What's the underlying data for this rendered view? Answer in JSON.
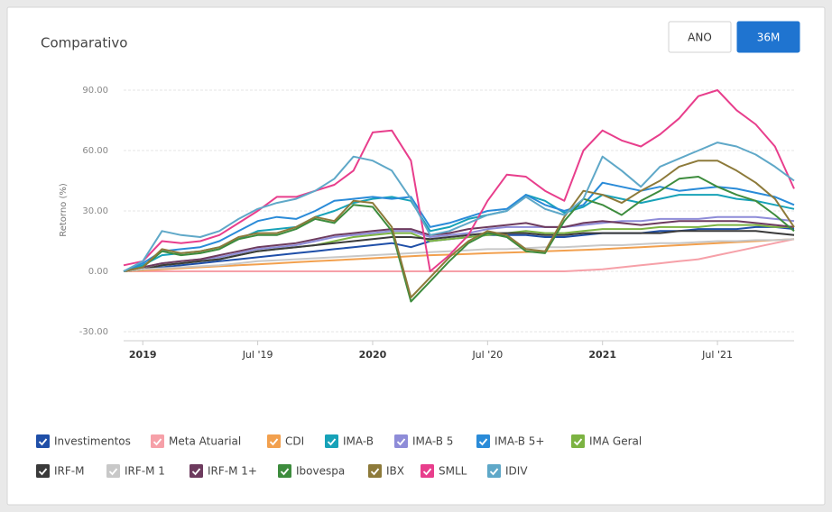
{
  "chart_data": {
    "type": "line",
    "title": "Comparativo",
    "y_label": "Retorno (%)",
    "buttons": [
      "ANO",
      "36M"
    ],
    "categories": [
      null,
      "2019",
      null,
      null,
      null,
      null,
      null,
      "Jul '19",
      null,
      null,
      null,
      null,
      null,
      "2020",
      null,
      null,
      null,
      null,
      null,
      "Jul '20",
      null,
      null,
      null,
      null,
      null,
      "2021",
      null,
      null,
      null,
      null,
      null,
      "Jul '21",
      null,
      null,
      null,
      null
    ],
    "ylim": [
      -30,
      90
    ],
    "yticks": [
      {
        "value": -30,
        "label": "-30.00"
      },
      {
        "value": 0,
        "label": "0.00"
      },
      {
        "value": 30,
        "label": "30.00"
      },
      {
        "value": 60,
        "label": "60.00"
      },
      {
        "value": 90,
        "label": "90.00"
      }
    ],
    "grid": true,
    "series": [
      {
        "name": "Investimentos",
        "color": "#1f4fa8",
        "values": [
          0,
          1,
          2,
          3,
          4,
          5,
          6,
          7,
          8,
          9,
          10,
          11,
          12,
          13,
          14,
          12,
          15,
          16,
          17,
          18,
          18,
          18,
          17,
          17,
          18,
          19,
          19,
          19,
          20,
          20,
          21,
          21,
          21,
          22,
          22,
          21
        ]
      },
      {
        "name": "Meta Atuarial",
        "color": "#f6a0a8",
        "values": [
          0,
          0,
          0,
          0,
          0,
          0,
          0,
          0,
          0,
          0,
          0,
          0,
          0,
          0,
          0,
          0,
          0,
          0,
          0,
          0,
          0,
          0,
          0,
          0,
          0.5,
          1,
          2,
          3,
          4,
          5,
          6,
          8,
          10,
          12,
          14,
          16
        ]
      },
      {
        "name": "CDI",
        "color": "#f2a04e",
        "values": [
          0,
          0.5,
          1,
          1.5,
          2,
          2.5,
          3,
          3.5,
          4,
          4.5,
          5,
          5.5,
          6,
          6.5,
          7,
          7.5,
          8,
          8.3,
          8.6,
          9,
          9.3,
          9.6,
          10,
          10.3,
          10.6,
          11,
          11.5,
          12,
          12.5,
          13,
          13.5,
          14,
          14.5,
          15,
          15.5,
          16
        ]
      },
      {
        "name": "IMA-B",
        "color": "#17a2b8",
        "values": [
          0,
          3,
          8,
          9,
          10,
          12,
          16,
          20,
          21,
          22,
          27,
          30,
          34,
          36,
          37,
          35,
          20,
          22,
          26,
          28,
          30,
          38,
          35,
          29,
          32,
          38,
          36,
          34,
          36,
          38,
          38,
          38,
          36,
          35,
          33,
          31
        ]
      },
      {
        "name": "IMA-B 5",
        "color": "#8e8cd8",
        "values": [
          0,
          2,
          4,
          5,
          6,
          7,
          9,
          11,
          12,
          13,
          15,
          17,
          18,
          19,
          20,
          20,
          17,
          18,
          19,
          21,
          22,
          22,
          22,
          22,
          23,
          24,
          25,
          25,
          26,
          26,
          26,
          27,
          27,
          27,
          26,
          25
        ]
      },
      {
        "name": "IMA-B 5+",
        "color": "#2a8bd8",
        "values": [
          0,
          4,
          10,
          11,
          12,
          15,
          20,
          25,
          27,
          26,
          30,
          35,
          36,
          37,
          36,
          37,
          22,
          24,
          27,
          30,
          31,
          38,
          33,
          30,
          33,
          44,
          42,
          40,
          42,
          40,
          41,
          42,
          41,
          39,
          37,
          33
        ]
      },
      {
        "name": "IMA Geral",
        "color": "#7cb342",
        "values": [
          0,
          1,
          3,
          4,
          5,
          6,
          8,
          10,
          11,
          12,
          13,
          15,
          17,
          18,
          19,
          19,
          15,
          16,
          17,
          18,
          19,
          20,
          19,
          19,
          20,
          21,
          21,
          21,
          22,
          22,
          22,
          23,
          23,
          23,
          22,
          22
        ]
      },
      {
        "name": "IRF-M",
        "color": "#3a3a3a",
        "values": [
          0,
          1,
          3,
          4,
          5,
          6,
          8,
          10,
          11,
          12,
          13,
          14,
          15,
          16,
          17,
          17,
          16,
          17,
          18,
          19,
          19,
          19,
          18,
          18,
          19,
          19,
          19,
          19,
          19,
          20,
          20,
          20,
          20,
          20,
          19,
          18
        ]
      },
      {
        "name": "IRF-M 1",
        "color": "#c8c8c8",
        "values": [
          0,
          1,
          1.5,
          2,
          2.5,
          3,
          4,
          5,
          5.5,
          6,
          6.5,
          7,
          7.5,
          8,
          8.5,
          9,
          9.5,
          10,
          10.5,
          11,
          11,
          11.5,
          12,
          12,
          12.5,
          13,
          13,
          13.5,
          14,
          14,
          14.5,
          15,
          15,
          15.5,
          15.5,
          16
        ]
      },
      {
        "name": "IRF-M 1+",
        "color": "#6d3b5e",
        "values": [
          0,
          2,
          4,
          5,
          6,
          8,
          10,
          12,
          13,
          14,
          16,
          18,
          19,
          20,
          21,
          21,
          18,
          19,
          21,
          22,
          23,
          24,
          22,
          22,
          24,
          25,
          24,
          23,
          24,
          25,
          25,
          25,
          25,
          24,
          23,
          22
        ]
      },
      {
        "name": "Ibovespa",
        "color": "#3d8c3d",
        "values": [
          0,
          2,
          10,
          8,
          9,
          11,
          16,
          18,
          18,
          21,
          26,
          24,
          33,
          32,
          20,
          -15,
          -5,
          5,
          14,
          19,
          17,
          10,
          9,
          25,
          36,
          33,
          28,
          35,
          40,
          46,
          47,
          42,
          38,
          35,
          28,
          20
        ]
      },
      {
        "name": "IBX",
        "color": "#8d7a3a",
        "values": [
          0,
          2,
          11,
          9,
          10,
          12,
          17,
          19,
          19,
          22,
          27,
          25,
          35,
          34,
          22,
          -13,
          -3,
          7,
          15,
          20,
          18,
          11,
          10,
          27,
          40,
          38,
          34,
          40,
          45,
          52,
          55,
          55,
          50,
          44,
          36,
          22
        ]
      },
      {
        "name": "SMLL",
        "color": "#e83e8c",
        "values": [
          3,
          5,
          15,
          14,
          15,
          18,
          24,
          30,
          37,
          37,
          40,
          43,
          50,
          69,
          70,
          55,
          0,
          8,
          18,
          35,
          48,
          47,
          40,
          35,
          60,
          70,
          65,
          62,
          68,
          76,
          87,
          90,
          80,
          73,
          62,
          41
        ]
      },
      {
        "name": "IDIV",
        "color": "#5fa8c8",
        "values": [
          0,
          5,
          20,
          18,
          17,
          20,
          26,
          31,
          34,
          36,
          40,
          46,
          57,
          55,
          50,
          36,
          18,
          20,
          24,
          28,
          30,
          37,
          31,
          28,
          36,
          57,
          50,
          42,
          52,
          56,
          60,
          64,
          62,
          58,
          52,
          45
        ]
      }
    ]
  }
}
